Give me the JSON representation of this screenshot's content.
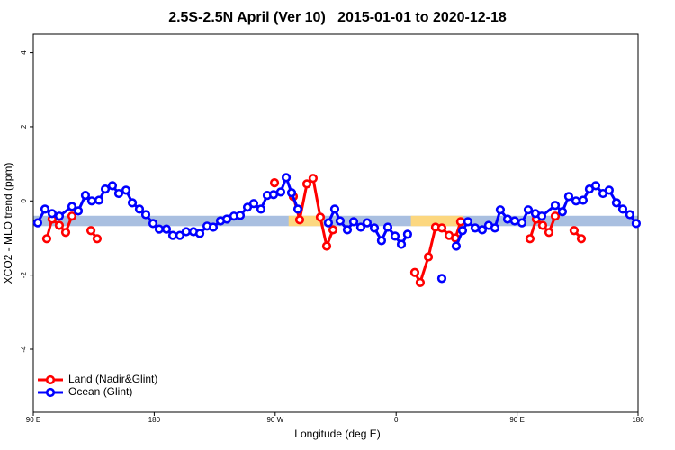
{
  "chart_data": {
    "type": "line",
    "title": "2.5S-2.5N April (Ver 10)   2015-01-01 to 2020-12-18",
    "x_label": "Longitude (deg E)",
    "y_label": "XCO2 - MLO trend (ppm)",
    "xlim": [
      90,
      540
    ],
    "ylim": [
      -5.7,
      4.5
    ],
    "xticks": [
      {
        "value": 90,
        "label": "90 E"
      },
      180,
      {
        "value": 270,
        "label": "90 W"
      },
      {
        "value": 360,
        "label": "0"
      },
      {
        "value": 450,
        "label": "90 E"
      },
      {
        "value": 540,
        "label": "180"
      }
    ],
    "yticks": [
      -4,
      -2,
      0,
      2,
      4
    ],
    "band": {
      "ylim": [
        -0.68,
        -0.4
      ],
      "ocean_color": "#a9bfe0",
      "land_color": "#fcd77f",
      "land_segments": [
        [
          280,
          306
        ],
        [
          371,
          410
        ]
      ]
    },
    "legend": "bottom-left",
    "series": [
      {
        "name": "Land (Nadir&Glint)",
        "color": "#ff0000",
        "x": [
          100,
          104,
          109.4,
          114.1,
          118.8,
          null,
          132.9,
          137.5,
          null,
          269.5,
          null,
          283.5,
          288.2,
          293.6,
          298.2,
          303.6,
          308.3,
          313,
          null,
          373.9,
          377.9,
          384,
          389.3,
          394,
          399.4,
          404.1,
          408,
          null,
          459.6,
          464.3,
          469,
          473.7,
          478.4,
          null,
          492.4,
          497.8
        ],
        "values": [
          -1.02,
          -0.49,
          -0.66,
          -0.85,
          -0.41,
          null,
          -0.8,
          -1.02,
          null,
          0.49,
          null,
          0.12,
          -0.51,
          0.46,
          0.61,
          -0.44,
          -1.22,
          -0.78,
          null,
          -1.93,
          -2.2,
          -1.51,
          -0.71,
          -0.73,
          -0.93,
          -1.0,
          -0.56,
          null,
          -1.02,
          -0.49,
          -0.66,
          -0.85,
          -0.41,
          null,
          -0.8,
          -1.02
        ]
      },
      {
        "name": "Ocean (Glint)",
        "color": "#0000ff",
        "x": [
          93.3,
          98.7,
          104,
          109.4,
          118.8,
          123.5,
          128.8,
          133.5,
          138.9,
          143.6,
          148.9,
          153.6,
          159,
          163.7,
          169,
          173.7,
          179.1,
          183.7,
          189.1,
          193.8,
          199.1,
          203.8,
          209.2,
          213.9,
          219.3,
          223.9,
          229.3,
          234,
          239.3,
          244,
          249.4,
          254,
          259.4,
          264.1,
          268.8,
          274.1,
          278.2,
          282.2,
          286.9,
          null,
          309.6,
          314.3,
          318.3,
          323.7,
          328.4,
          333.7,
          338.4,
          343.8,
          349.1,
          353.8,
          359.2,
          363.9,
          368.5,
          null,
          394,
          null,
          404.7,
          409.4,
          413.4,
          418.8,
          424.1,
          428.8,
          433.5,
          437.5,
          442.9,
          448.2,
          453.6,
          458.3,
          463.6,
          468.3,
          478.4,
          483.7,
          488.4,
          493.8,
          499.1,
          503.8,
          508.5,
          513.9,
          518.5,
          523.9,
          528.6,
          533.9,
          538.6
        ],
        "values": [
          -0.59,
          -0.22,
          -0.34,
          -0.41,
          -0.15,
          -0.27,
          0.15,
          0,
          0.02,
          0.32,
          0.41,
          0.2,
          0.29,
          -0.05,
          -0.22,
          -0.37,
          -0.61,
          -0.76,
          -0.76,
          -0.93,
          -0.93,
          -0.83,
          -0.83,
          -0.88,
          -0.68,
          -0.71,
          -0.54,
          -0.49,
          -0.41,
          -0.39,
          -0.17,
          -0.07,
          -0.22,
          0.15,
          0.17,
          0.24,
          0.63,
          0.22,
          -0.22,
          null,
          -0.59,
          -0.22,
          -0.54,
          -0.78,
          -0.56,
          -0.71,
          -0.59,
          -0.73,
          -1.07,
          -0.71,
          -0.95,
          -1.17,
          -0.9,
          null,
          -2.09,
          null,
          -1.22,
          -0.8,
          -0.56,
          -0.73,
          -0.78,
          -0.66,
          -0.73,
          -0.24,
          -0.49,
          -0.54,
          -0.59,
          -0.24,
          -0.34,
          -0.41,
          -0.12,
          -0.29,
          0.12,
          0,
          0.02,
          0.32,
          0.41,
          0.2,
          0.29,
          -0.05,
          -0.22,
          -0.37,
          -0.61
        ]
      }
    ]
  }
}
